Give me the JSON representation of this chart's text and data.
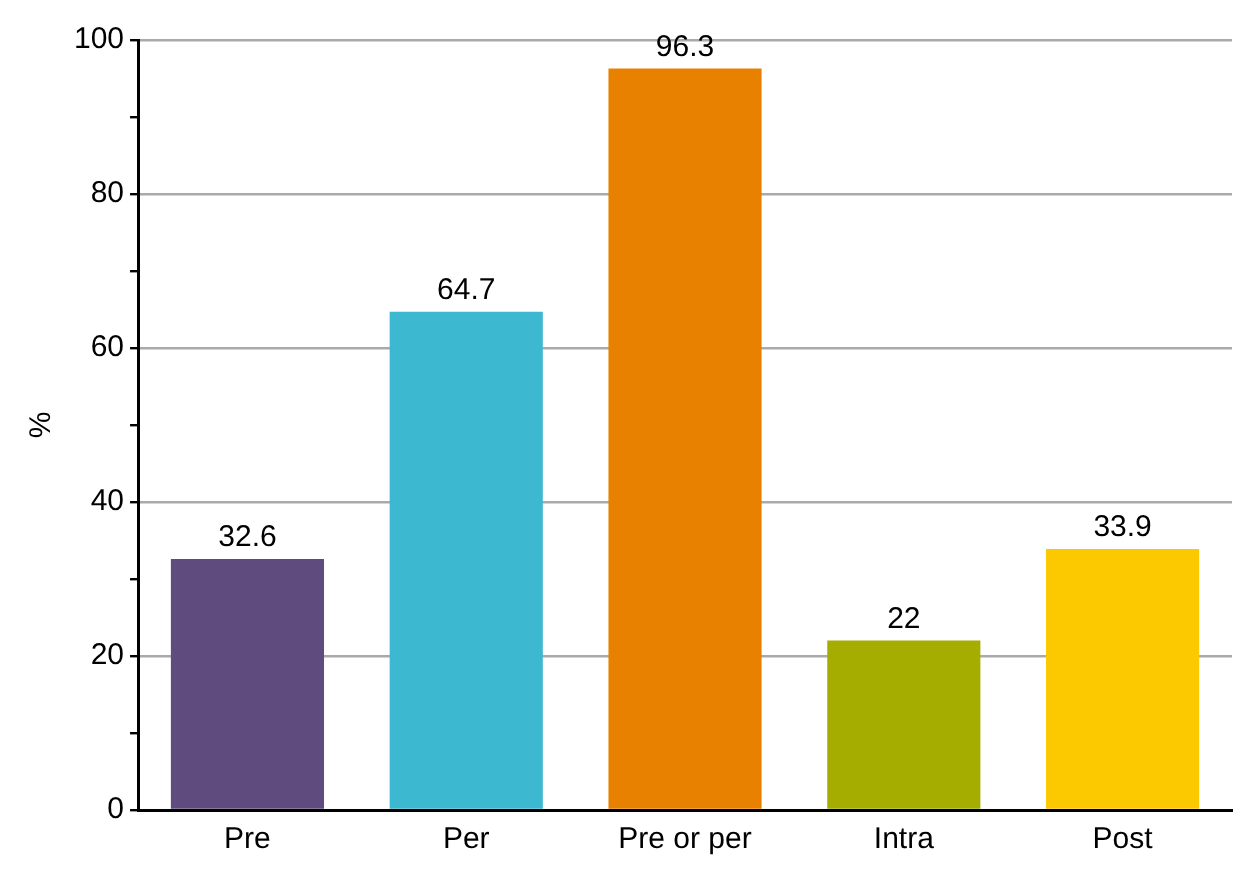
{
  "chart_data": {
    "type": "bar",
    "ylabel": "%",
    "categories": [
      "Pre",
      "Per",
      "Pre or per",
      "Intra",
      "Post"
    ],
    "values": [
      32.6,
      64.7,
      96.3,
      22,
      33.9
    ],
    "colors": [
      "#5f4b7d",
      "#3cb8d0",
      "#e88100",
      "#a5ad00",
      "#fcc800"
    ],
    "ylim": [
      0,
      100
    ],
    "yticks": [
      0,
      {
        "value": 10,
        "label": null
      },
      20,
      {
        "value": 30,
        "label": null
      },
      40,
      {
        "value": 50,
        "label": null
      },
      60,
      {
        "value": 70,
        "label": null
      },
      80,
      {
        "value": 90,
        "label": null
      },
      100
    ],
    "grid": "y",
    "data_labels": true,
    "legend": false
  }
}
